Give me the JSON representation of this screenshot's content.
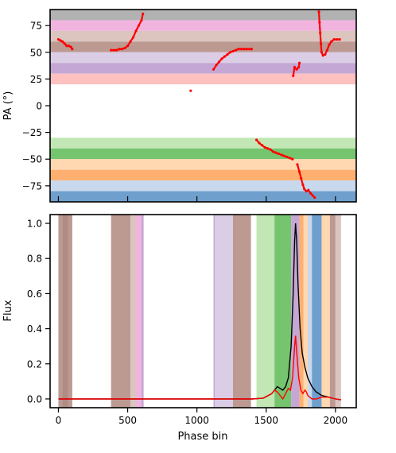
{
  "chart_data": [
    {
      "type": "scatter",
      "panel": "top",
      "xlabel": "",
      "ylabel": "PA (°)",
      "xlim": [
        -60,
        2150
      ],
      "ylim": [
        -90,
        90
      ],
      "yticks": [
        75,
        50,
        25,
        0,
        -25,
        -50,
        -75
      ],
      "xticks": [
        0,
        500,
        1000,
        1500,
        2000
      ],
      "show_x_tick_labels": false,
      "bands": [
        {
          "y0": 80,
          "y1": 90,
          "color": "#b2b2b2"
        },
        {
          "y0": 70,
          "y1": 80,
          "color": "#f0b4de"
        },
        {
          "y0": 60,
          "y1": 70,
          "color": "#dcc4bf"
        },
        {
          "y0": 50,
          "y1": 60,
          "color": "#bc9a92"
        },
        {
          "y0": 40,
          "y1": 50,
          "color": "#dbcde6"
        },
        {
          "y0": 30,
          "y1": 40,
          "color": "#c4a7d4"
        },
        {
          "y0": 20,
          "y1": 30,
          "color": "#ffc0c0"
        },
        {
          "y0": -40,
          "y1": -30,
          "color": "#c2e7b4"
        },
        {
          "y0": -50,
          "y1": -40,
          "color": "#75c46e"
        },
        {
          "y0": -60,
          "y1": -50,
          "color": "#ffd7b1"
        },
        {
          "y0": -70,
          "y1": -60,
          "color": "#ffb070"
        },
        {
          "y0": -80,
          "y1": -70,
          "color": "#c8d9ee"
        },
        {
          "y0": -90,
          "y1": -80,
          "color": "#6f9fcc"
        }
      ],
      "series": [
        {
          "color": "#ff0000",
          "points": [
            [
              0,
              62
            ],
            [
              15,
              61
            ],
            [
              30,
              60
            ],
            [
              45,
              58
            ],
            [
              60,
              56
            ],
            [
              75,
              56
            ],
            [
              90,
              55
            ],
            [
              100,
              53
            ]
          ]
        },
        {
          "color": "#ff0000",
          "points": [
            [
              380,
              52
            ],
            [
              400,
              52
            ],
            [
              420,
              52
            ],
            [
              440,
              53
            ],
            [
              460,
              53
            ],
            [
              480,
              54
            ],
            [
              500,
              56
            ],
            [
              520,
              60
            ],
            [
              540,
              64
            ],
            [
              560,
              70
            ],
            [
              580,
              75
            ],
            [
              600,
              80
            ],
            [
              610,
              86
            ]
          ]
        },
        {
          "color": "#ff0000",
          "points": [
            [
              955,
              14
            ]
          ]
        },
        {
          "color": "#ff0000",
          "points": [
            [
              1120,
              34
            ],
            [
              1140,
              38
            ],
            [
              1160,
              41
            ],
            [
              1180,
              44
            ],
            [
              1200,
              46
            ],
            [
              1220,
              48
            ],
            [
              1240,
              50
            ],
            [
              1260,
              51
            ],
            [
              1280,
              52
            ],
            [
              1300,
              53
            ],
            [
              1320,
              53
            ],
            [
              1340,
              53
            ],
            [
              1360,
              53
            ],
            [
              1380,
              53
            ],
            [
              1395,
              53
            ]
          ]
        },
        {
          "color": "#ff0000",
          "points": [
            [
              1430,
              -32
            ],
            [
              1450,
              -35
            ],
            [
              1470,
              -37
            ],
            [
              1490,
              -39
            ],
            [
              1510,
              -40
            ],
            [
              1530,
              -41
            ],
            [
              1550,
              -43
            ],
            [
              1570,
              -44
            ],
            [
              1590,
              -45
            ],
            [
              1610,
              -46
            ],
            [
              1630,
              -47
            ],
            [
              1650,
              -48
            ],
            [
              1670,
              -49
            ],
            [
              1690,
              -50
            ]
          ]
        },
        {
          "color": "#ff0000",
          "points": [
            [
              1695,
              28
            ],
            [
              1705,
              36
            ],
            [
              1720,
              34
            ],
            [
              1735,
              36
            ],
            [
              1740,
              40
            ]
          ]
        },
        {
          "color": "#ff0000",
          "points": [
            [
              1725,
              -55
            ],
            [
              1740,
              -62
            ],
            [
              1752,
              -68
            ],
            [
              1765,
              -74
            ],
            [
              1775,
              -78
            ],
            [
              1790,
              -80
            ],
            [
              1805,
              -79
            ],
            [
              1820,
              -82
            ],
            [
              1835,
              -84
            ],
            [
              1850,
              -86
            ]
          ]
        },
        {
          "color": "#ff0000",
          "points": [
            [
              1880,
              88
            ],
            [
              1885,
              78
            ],
            [
              1890,
              68
            ],
            [
              1895,
              58
            ],
            [
              1900,
              50
            ],
            [
              1910,
              47
            ],
            [
              1925,
              48
            ],
            [
              1940,
              52
            ],
            [
              1955,
              57
            ],
            [
              1970,
              60
            ],
            [
              1990,
              62
            ],
            [
              2010,
              62
            ],
            [
              2030,
              62
            ]
          ]
        }
      ]
    },
    {
      "type": "line",
      "panel": "bottom",
      "xlabel": "Phase bin",
      "ylabel": "Flux",
      "xlim": [
        -60,
        2150
      ],
      "ylim": [
        -0.05,
        1.05
      ],
      "xticks": [
        0,
        500,
        1000,
        1500,
        2000
      ],
      "yticks": [
        0.0,
        0.2,
        0.4,
        0.6,
        0.8,
        1.0
      ],
      "regions": [
        {
          "x0": 0,
          "x1": 100,
          "color": "#bc9a92"
        },
        {
          "x0": 30,
          "x1": 70,
          "color": "#b08c84"
        },
        {
          "x0": 380,
          "x1": 520,
          "color": "#bc9a92"
        },
        {
          "x0": 520,
          "x1": 560,
          "color": "#dcc4bf"
        },
        {
          "x0": 560,
          "x1": 600,
          "color": "#f0b4de"
        },
        {
          "x0": 600,
          "x1": 615,
          "color": "#c4a7d4"
        },
        {
          "x0": 1120,
          "x1": 1130,
          "color": "#c4a7d4"
        },
        {
          "x0": 1130,
          "x1": 1260,
          "color": "#dbcde6"
        },
        {
          "x0": 1260,
          "x1": 1390,
          "color": "#bc9a92"
        },
        {
          "x0": 1430,
          "x1": 1560,
          "color": "#c2e7b4"
        },
        {
          "x0": 1560,
          "x1": 1680,
          "color": "#75c46e"
        },
        {
          "x0": 1680,
          "x1": 1740,
          "color": "#c4a7d4"
        },
        {
          "x0": 1740,
          "x1": 1770,
          "color": "#ffb070"
        },
        {
          "x0": 1770,
          "x1": 1800,
          "color": "#ffd7b1"
        },
        {
          "x0": 1800,
          "x1": 1830,
          "color": "#c8d9ee"
        },
        {
          "x0": 1830,
          "x1": 1900,
          "color": "#6f9fcc"
        },
        {
          "x0": 1900,
          "x1": 1960,
          "color": "#ffd7b1"
        },
        {
          "x0": 1960,
          "x1": 2000,
          "color": "#bc9a92"
        },
        {
          "x0": 2000,
          "x1": 2040,
          "color": "#dcc4bf"
        }
      ],
      "series": [
        {
          "color": "#000000",
          "points": [
            [
              0,
              0.0
            ],
            [
              500,
              0.0
            ],
            [
              1000,
              0.0
            ],
            [
              1400,
              0.0
            ],
            [
              1480,
              0.005
            ],
            [
              1540,
              0.03
            ],
            [
              1560,
              0.05
            ],
            [
              1580,
              0.07
            ],
            [
              1600,
              0.06
            ],
            [
              1620,
              0.05
            ],
            [
              1640,
              0.07
            ],
            [
              1660,
              0.12
            ],
            [
              1680,
              0.3
            ],
            [
              1695,
              0.6
            ],
            [
              1705,
              0.9
            ],
            [
              1712,
              1.0
            ],
            [
              1720,
              0.9
            ],
            [
              1730,
              0.65
            ],
            [
              1745,
              0.4
            ],
            [
              1760,
              0.26
            ],
            [
              1780,
              0.18
            ],
            [
              1800,
              0.12
            ],
            [
              1830,
              0.07
            ],
            [
              1860,
              0.04
            ],
            [
              1900,
              0.02
            ],
            [
              1950,
              0.01
            ],
            [
              2000,
              0.0
            ],
            [
              2040,
              -0.005
            ]
          ]
        },
        {
          "color": "#ff0000",
          "points": [
            [
              0,
              0.0
            ],
            [
              500,
              0.0
            ],
            [
              1000,
              0.0
            ],
            [
              1400,
              0.0
            ],
            [
              1480,
              0.005
            ],
            [
              1540,
              0.03
            ],
            [
              1560,
              0.05
            ],
            [
              1580,
              0.04
            ],
            [
              1600,
              0.02
            ],
            [
              1620,
              0.0
            ],
            [
              1640,
              0.03
            ],
            [
              1660,
              0.06
            ],
            [
              1675,
              0.05
            ],
            [
              1690,
              0.12
            ],
            [
              1705,
              0.3
            ],
            [
              1712,
              0.36
            ],
            [
              1722,
              0.25
            ],
            [
              1735,
              0.12
            ],
            [
              1750,
              0.05
            ],
            [
              1765,
              0.03
            ],
            [
              1780,
              0.05
            ],
            [
              1790,
              0.04
            ],
            [
              1800,
              0.02
            ],
            [
              1830,
              0.0
            ],
            [
              1860,
              0.0
            ],
            [
              1900,
              0.01
            ],
            [
              1950,
              0.01
            ],
            [
              2000,
              0.0
            ],
            [
              2040,
              -0.005
            ]
          ]
        }
      ]
    }
  ]
}
